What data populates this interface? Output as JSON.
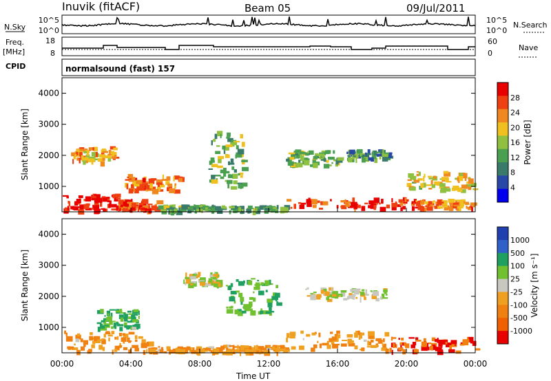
{
  "header": {
    "station": "Inuvik (fitACF)",
    "beam": "Beam 05",
    "date": "09/Jul/2011"
  },
  "noise_panel": {
    "left_label": "N.Sky",
    "right_label": "N.Search",
    "left_ticks": [
      "10^5",
      "10^0"
    ],
    "right_ticks": [
      "10^5",
      "10^0"
    ]
  },
  "freq_panel": {
    "left_label_1": "Freq.",
    "left_label_2": "[MHz]",
    "right_label": "Nave",
    "left_ticks": [
      "18",
      "8"
    ],
    "right_ticks": [
      "60",
      "0"
    ]
  },
  "cpid": {
    "label": "CPID",
    "mode": "normalsound (fast) 157"
  },
  "colors": {
    "power_scale": [
      "#0000ee",
      "#2848a8",
      "#3a7a6a",
      "#4aa050",
      "#90c040",
      "#f0c020",
      "#f08820",
      "#ee4010",
      "#e80000"
    ],
    "velocity_scale": [
      "#2040b0",
      "#3060c8",
      "#20a060",
      "#70c030",
      "#c8c8c0",
      "#f0a020",
      "#f08010",
      "#f06000",
      "#e80000"
    ]
  },
  "chart_data": [
    {
      "type": "heatmap",
      "title": "Power",
      "ylabel": "Slant Range [km]",
      "xlabel": "Time UT",
      "x_ticks": [
        "00:00",
        "04:00",
        "08:00",
        "12:00",
        "16:00",
        "20:00",
        "00:00"
      ],
      "y_ticks": [
        "1000",
        "2000",
        "3000",
        "4000"
      ],
      "xlim": [
        0,
        24
      ],
      "ylim": [
        180,
        4500
      ],
      "colorbar": {
        "label": "Power [dB]",
        "ticks": [
          "28",
          "24",
          "20",
          "16",
          "12",
          "8",
          "4"
        ]
      },
      "regions": [
        {
          "t": [
            0.0,
            3.2
          ],
          "r": [
            250,
            800
          ],
          "v": 28
        },
        {
          "t": [
            3.2,
            5.5
          ],
          "r": [
            250,
            600
          ],
          "v": 26
        },
        {
          "t": [
            5.5,
            9.0
          ],
          "r": [
            230,
            420
          ],
          "v": 12
        },
        {
          "t": [
            9.0,
            13.0
          ],
          "r": [
            230,
            400
          ],
          "v": 12
        },
        {
          "t": [
            13.0,
            20.5
          ],
          "r": [
            300,
            650
          ],
          "v": 26
        },
        {
          "t": [
            20.5,
            24.0
          ],
          "r": [
            300,
            600
          ],
          "v": 22
        },
        {
          "t": [
            0.5,
            3.0
          ],
          "r": [
            1800,
            2300
          ],
          "v": 20
        },
        {
          "t": [
            3.5,
            7.0
          ],
          "r": [
            900,
            1400
          ],
          "v": 22
        },
        {
          "t": [
            8.5,
            10.5
          ],
          "r": [
            1000,
            2800
          ],
          "v": 14
        },
        {
          "t": [
            13.0,
            16.0
          ],
          "r": [
            1700,
            2200
          ],
          "v": 14
        },
        {
          "t": [
            16.5,
            19.0
          ],
          "r": [
            1900,
            2200
          ],
          "v": 10
        },
        {
          "t": [
            20.0,
            24.0
          ],
          "r": [
            900,
            1500
          ],
          "v": 18
        }
      ]
    },
    {
      "type": "heatmap",
      "title": "Velocity",
      "ylabel": "Slant Range [km]",
      "xlabel": "Time UT",
      "x_ticks": [
        "00:00",
        "04:00",
        "08:00",
        "12:00",
        "16:00",
        "20:00",
        "00:00"
      ],
      "y_ticks": [
        "1000",
        "2000",
        "3000",
        "4000"
      ],
      "xlim": [
        0,
        24
      ],
      "ylim": [
        180,
        4500
      ],
      "colorbar": {
        "label": "Velocity [m s⁻¹]",
        "ticks": [
          "1000",
          "500",
          "100",
          "25",
          "-25",
          "-100",
          "-500",
          "-1000"
        ]
      },
      "regions": [
        {
          "t": [
            0.0,
            5.0
          ],
          "r": [
            250,
            900
          ],
          "v": -100
        },
        {
          "t": [
            5.0,
            9.0
          ],
          "r": [
            230,
            400
          ],
          "v": -100
        },
        {
          "t": [
            9.0,
            13.0
          ],
          "r": [
            230,
            450
          ],
          "v": -100
        },
        {
          "t": [
            13.0,
            19.0
          ],
          "r": [
            300,
            900
          ],
          "v": -100
        },
        {
          "t": [
            19.0,
            24.0
          ],
          "r": [
            250,
            700
          ],
          "v": -500
        },
        {
          "t": [
            2.0,
            4.5
          ],
          "r": [
            1000,
            1600
          ],
          "v": 100
        },
        {
          "t": [
            7.0,
            9.0
          ],
          "r": [
            2400,
            2800
          ],
          "v": 0
        },
        {
          "t": [
            9.5,
            12.5
          ],
          "r": [
            1500,
            2600
          ],
          "v": 100
        },
        {
          "t": [
            14.0,
            19.0
          ],
          "r": [
            1900,
            2300
          ],
          "v": 0
        }
      ]
    }
  ]
}
